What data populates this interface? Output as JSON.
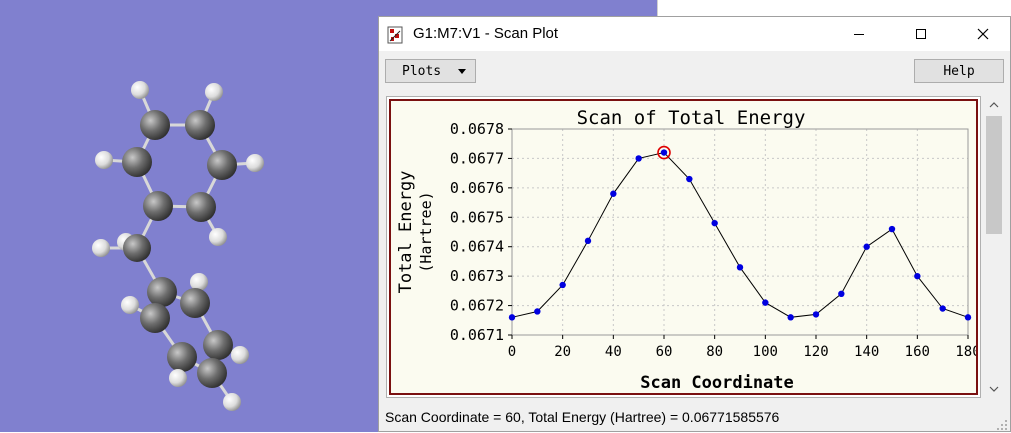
{
  "window": {
    "title": "G1:M7:V1 - Scan Plot"
  },
  "toolbar": {
    "plots_label": "Plots",
    "help_label": "Help"
  },
  "status": {
    "text": "Scan Coordinate = 60, Total Energy (Hartree) = 0.06771585576"
  },
  "colors": {
    "desktop": "#8080cf",
    "frame": "#7a1010",
    "plot_bg": "#fbfbf0",
    "points": "#0000e0",
    "highlight": "#e00000"
  },
  "icons": {
    "app": "gaussview-plot-icon",
    "minimize": "minimize-icon",
    "maximize": "maximize-icon",
    "close": "close-icon"
  },
  "chart_data": {
    "type": "line",
    "title": "Scan of Total Energy",
    "xlabel": "Scan Coordinate",
    "ylabel": "Total Energy",
    "ylabel_unit": "(Hartree)",
    "x": [
      0,
      10,
      20,
      30,
      40,
      50,
      60,
      70,
      80,
      90,
      100,
      110,
      120,
      130,
      140,
      150,
      160,
      170,
      180
    ],
    "y": [
      0.06716,
      0.06718,
      0.06727,
      0.06742,
      0.06758,
      0.0677,
      0.06772,
      0.06763,
      0.06748,
      0.06733,
      0.06721,
      0.06716,
      0.06717,
      0.06724,
      0.0674,
      0.06746,
      0.0673,
      0.06719,
      0.06716
    ],
    "xlim": [
      0,
      180
    ],
    "ylim": [
      0.0671,
      0.0678
    ],
    "xticks": [
      "0",
      "20",
      "40",
      "60",
      "80",
      "100",
      "120",
      "140",
      "160",
      "180"
    ],
    "yticks": [
      "0.0671",
      "0.0672",
      "0.0673",
      "0.0674",
      "0.0675",
      "0.0676",
      "0.0677",
      "0.0678"
    ],
    "highlight_x": 60,
    "grid": true,
    "line_color": "#000000",
    "marker_color": "#0000e0"
  }
}
